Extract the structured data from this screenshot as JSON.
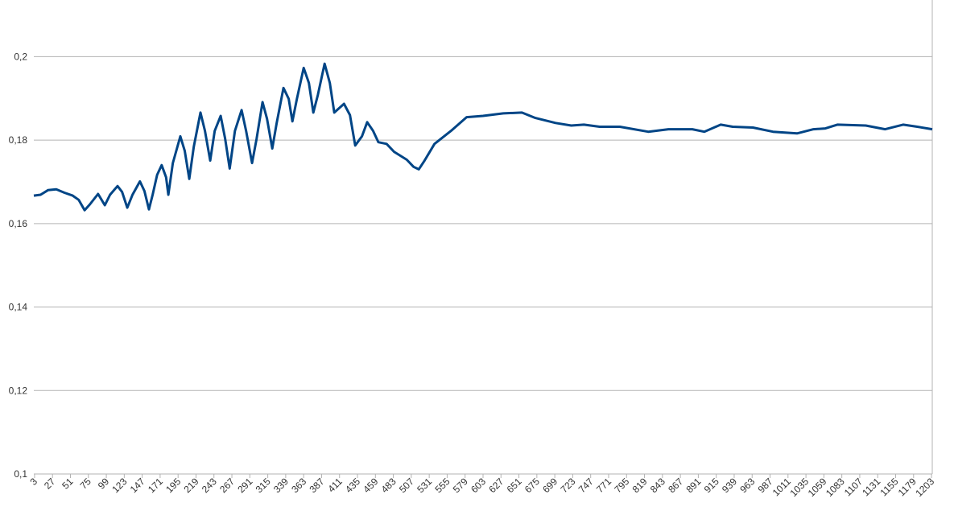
{
  "chart_data": {
    "type": "line",
    "x": [
      2,
      11,
      21,
      32,
      43,
      54,
      62,
      70,
      77,
      88,
      97,
      104,
      114,
      120,
      127,
      134,
      144,
      150,
      156,
      161,
      167,
      173,
      179,
      182,
      188,
      198,
      204,
      210,
      216,
      225,
      231,
      238,
      244,
      252,
      258,
      264,
      271,
      280,
      286,
      294,
      300,
      308,
      314,
      321,
      327,
      336,
      343,
      348,
      354,
      363,
      370,
      376,
      382,
      391,
      398,
      404,
      417,
      425,
      432,
      441,
      448,
      456,
      463,
      474,
      484,
      501,
      510,
      517,
      524,
      538,
      560,
      581,
      603,
      630,
      655,
      673,
      700,
      721,
      738,
      759,
      786,
      824,
      851,
      883,
      899,
      921,
      937,
      964,
      991,
      1023,
      1045,
      1061,
      1077,
      1115,
      1141,
      1165,
      1184,
      1204
    ],
    "series": [
      {
        "color": "#004586",
        "values": [
          0.1667,
          0.1669,
          0.168,
          0.1682,
          0.1674,
          0.1667,
          0.1657,
          0.1632,
          0.1646,
          0.1671,
          0.1644,
          0.1669,
          0.169,
          0.1676,
          0.1638,
          0.1669,
          0.1701,
          0.1678,
          0.1634,
          0.1669,
          0.1717,
          0.174,
          0.1711,
          0.1669,
          0.1745,
          0.1809,
          0.1774,
          0.1707,
          0.1784,
          0.1866,
          0.1822,
          0.1751,
          0.1822,
          0.1858,
          0.1803,
          0.1732,
          0.1822,
          0.1872,
          0.1822,
          0.1745,
          0.1803,
          0.1891,
          0.1851,
          0.178,
          0.1841,
          0.1925,
          0.1899,
          0.1845,
          0.1899,
          0.1973,
          0.1937,
          0.1866,
          0.1908,
          0.1983,
          0.1937,
          0.1866,
          0.1887,
          0.186,
          0.1787,
          0.1809,
          0.1843,
          0.1822,
          0.1795,
          0.1791,
          0.1772,
          0.1753,
          0.1736,
          0.173,
          0.1749,
          0.1791,
          0.1822,
          0.1855,
          0.1858,
          0.1864,
          0.1866,
          0.1853,
          0.1841,
          0.1835,
          0.1837,
          0.1832,
          0.1832,
          0.182,
          0.1826,
          0.1826,
          0.182,
          0.1837,
          0.1832,
          0.183,
          0.182,
          0.1816,
          0.1826,
          0.1828,
          0.1837,
          0.1835,
          0.1826,
          0.1837,
          0.1832,
          0.1826
        ]
      }
    ],
    "xlim": [
      2,
      1204
    ],
    "xticks": [
      3,
      27,
      51,
      75,
      99,
      123,
      147,
      171,
      195,
      219,
      243,
      267,
      291,
      315,
      339,
      363,
      387,
      411,
      435,
      459,
      483,
      507,
      531,
      555,
      579,
      603,
      627,
      651,
      675,
      699,
      723,
      747,
      771,
      795,
      819,
      843,
      867,
      891,
      915,
      939,
      963,
      987,
      1011,
      1035,
      1059,
      1083,
      1107,
      1131,
      1155,
      1179,
      1203
    ],
    "ylim": [
      0.1,
      0.2128
    ],
    "yticks": [
      {
        "value": 0.1,
        "label": "0,1"
      },
      {
        "value": 0.12,
        "label": "0,12"
      },
      {
        "value": 0.14,
        "label": "0,14"
      },
      {
        "value": 0.16,
        "label": "0,16"
      },
      {
        "value": 0.18,
        "label": "0,18"
      },
      {
        "value": 0.2,
        "label": "0,2"
      }
    ],
    "grid": true
  }
}
